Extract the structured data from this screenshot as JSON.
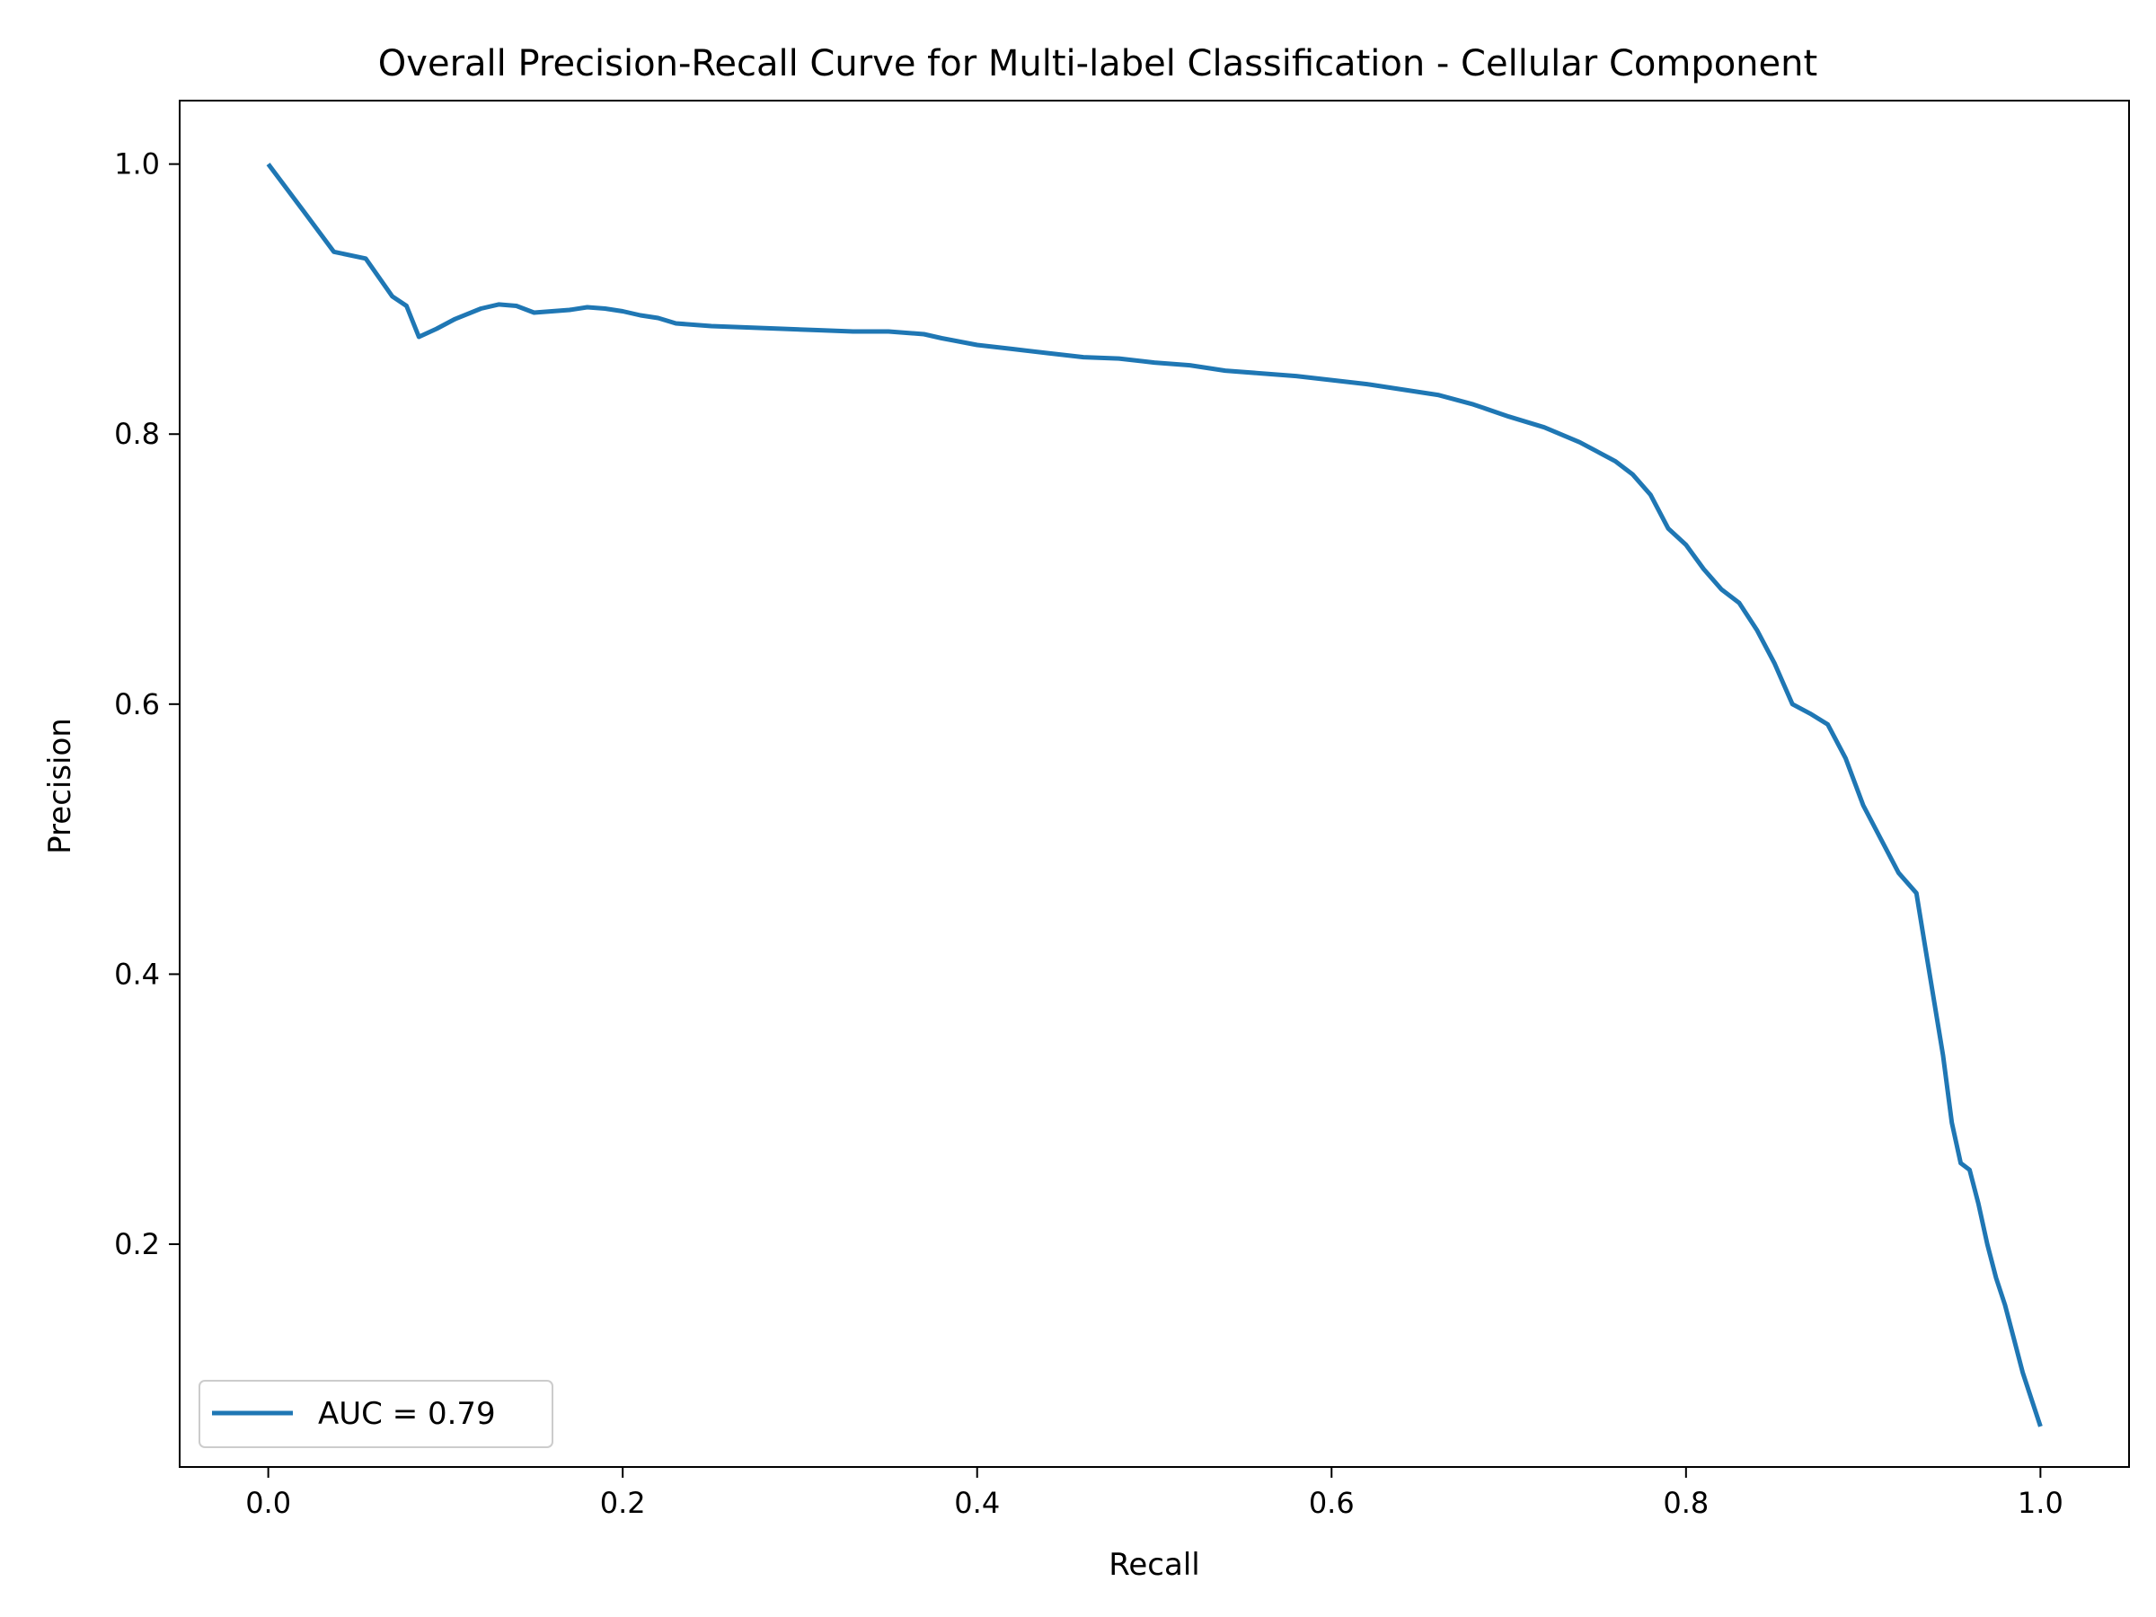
{
  "chart_data": {
    "type": "line",
    "title": "Overall Precision-Recall Curve for Multi-label Classification - Cellular Component",
    "xlabel": "Recall",
    "ylabel": "Precision",
    "xlim": [
      -0.05,
      1.05
    ],
    "ylim": [
      0.035,
      1.047
    ],
    "xticks": [
      0.0,
      0.2,
      0.4,
      0.6,
      0.8,
      1.0
    ],
    "xtick_labels": [
      "0.0",
      "0.2",
      "0.4",
      "0.6",
      "0.8",
      "1.0"
    ],
    "yticks": [
      0.2,
      0.4,
      0.6,
      0.8,
      1.0
    ],
    "ytick_labels": [
      "0.2",
      "0.4",
      "0.6",
      "0.8",
      "1.0"
    ],
    "grid": false,
    "legend_position": "lower-left",
    "series": [
      {
        "name": "AUC = 0.79",
        "color": "#1f77b4",
        "x": [
          0.0,
          0.02,
          0.037,
          0.055,
          0.07,
          0.078,
          0.085,
          0.095,
          0.105,
          0.12,
          0.13,
          0.14,
          0.15,
          0.16,
          0.17,
          0.18,
          0.19,
          0.2,
          0.21,
          0.22,
          0.23,
          0.25,
          0.27,
          0.29,
          0.31,
          0.33,
          0.35,
          0.37,
          0.38,
          0.4,
          0.42,
          0.44,
          0.46,
          0.48,
          0.5,
          0.52,
          0.54,
          0.56,
          0.58,
          0.6,
          0.62,
          0.64,
          0.66,
          0.68,
          0.7,
          0.72,
          0.74,
          0.76,
          0.77,
          0.78,
          0.79,
          0.8,
          0.81,
          0.82,
          0.83,
          0.84,
          0.85,
          0.86,
          0.87,
          0.88,
          0.89,
          0.9,
          0.91,
          0.92,
          0.93,
          0.935,
          0.94,
          0.945,
          0.95,
          0.955,
          0.96,
          0.965,
          0.97,
          0.975,
          0.98,
          0.985,
          0.99,
          0.995,
          1.0
        ],
        "y": [
          1.0,
          0.965,
          0.935,
          0.93,
          0.902,
          0.895,
          0.872,
          0.878,
          0.885,
          0.893,
          0.896,
          0.895,
          0.89,
          0.891,
          0.892,
          0.894,
          0.893,
          0.891,
          0.888,
          0.886,
          0.882,
          0.88,
          0.879,
          0.878,
          0.877,
          0.876,
          0.876,
          0.874,
          0.871,
          0.866,
          0.863,
          0.86,
          0.857,
          0.856,
          0.853,
          0.851,
          0.847,
          0.845,
          0.843,
          0.84,
          0.837,
          0.833,
          0.829,
          0.822,
          0.813,
          0.805,
          0.794,
          0.78,
          0.77,
          0.755,
          0.73,
          0.718,
          0.7,
          0.685,
          0.675,
          0.655,
          0.63,
          0.6,
          0.593,
          0.585,
          0.56,
          0.525,
          0.5,
          0.475,
          0.46,
          0.42,
          0.38,
          0.34,
          0.29,
          0.26,
          0.255,
          0.23,
          0.2,
          0.175,
          0.155,
          0.13,
          0.105,
          0.085,
          0.065
        ]
      }
    ],
    "legend_label": "AUC = 0.79"
  }
}
